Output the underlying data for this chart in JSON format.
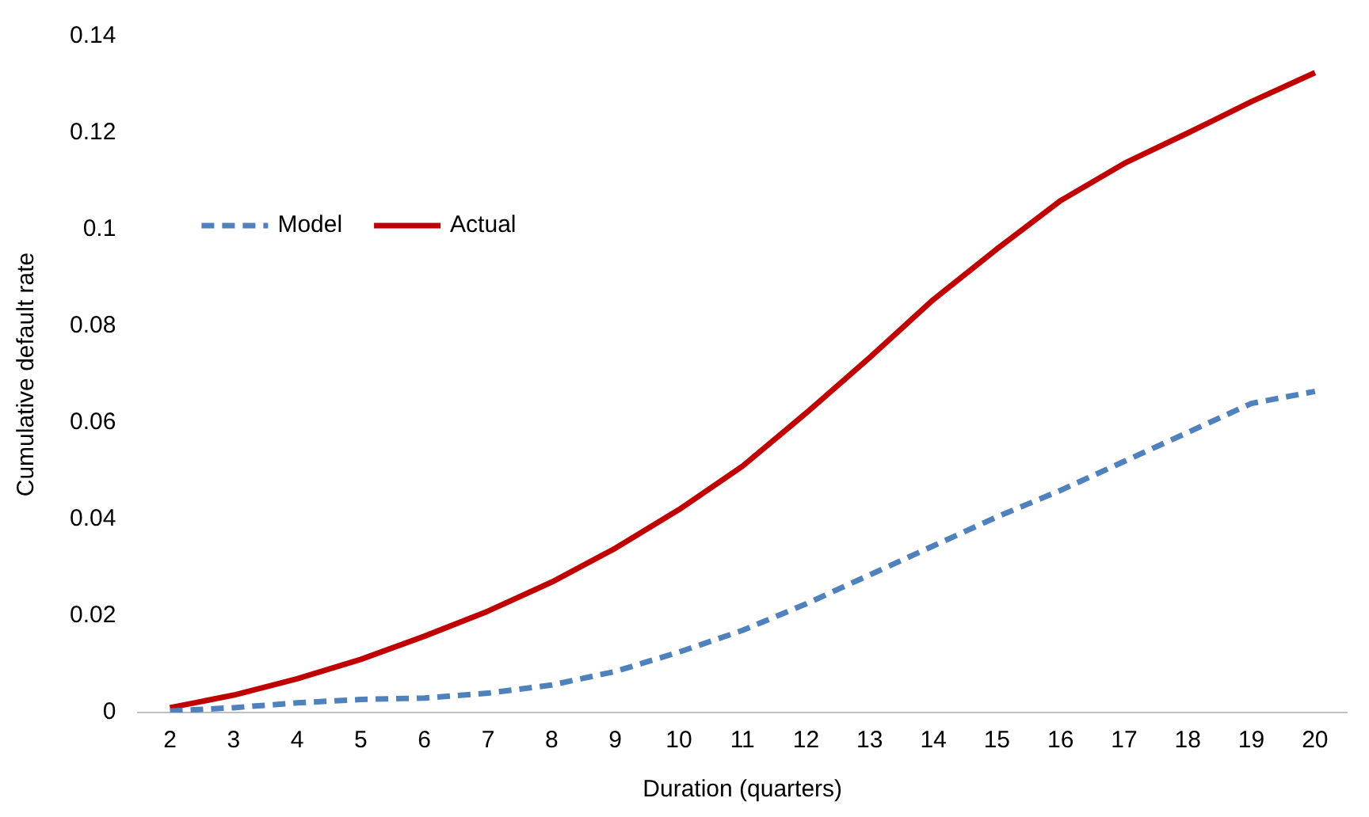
{
  "chart_data": {
    "type": "line",
    "xlabel": "Duration (quarters)",
    "ylabel": "Cumulative default rate",
    "categories": [
      "2",
      "3",
      "4",
      "5",
      "6",
      "7",
      "8",
      "9",
      "10",
      "11",
      "12",
      "13",
      "14",
      "15",
      "16",
      "17",
      "18",
      "19",
      "20"
    ],
    "series": [
      {
        "name": "Model",
        "color": "#4f81bd",
        "line_style": "dashed",
        "values": [
          0.0003,
          0.001,
          0.002,
          0.0027,
          0.003,
          0.004,
          0.0057,
          0.0085,
          0.0125,
          0.017,
          0.0225,
          0.0285,
          0.0345,
          0.0405,
          0.046,
          0.052,
          0.058,
          0.064,
          0.0665
        ]
      },
      {
        "name": "Actual",
        "color": "#c00000",
        "line_style": "solid",
        "values": [
          0.001,
          0.0036,
          0.007,
          0.011,
          0.0158,
          0.021,
          0.027,
          0.034,
          0.042,
          0.051,
          0.062,
          0.0735,
          0.0855,
          0.096,
          0.106,
          0.1137,
          0.12,
          0.1265,
          0.1325
        ]
      }
    ],
    "ylim": [
      0,
      0.14
    ],
    "yticks": [
      0,
      0.02,
      0.04,
      0.06,
      0.08,
      0.1,
      0.12,
      0.14
    ],
    "grid": false,
    "legend": "top left",
    "marker": "none"
  }
}
